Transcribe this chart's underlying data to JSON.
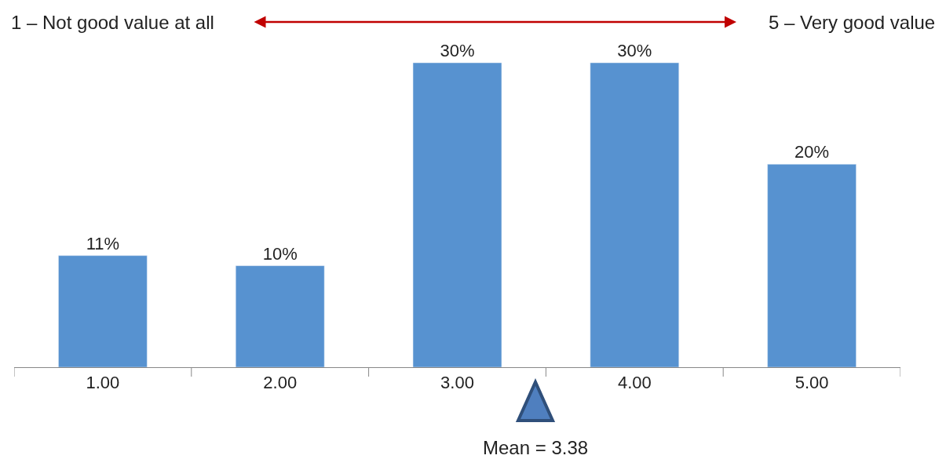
{
  "chart_data": {
    "type": "bar",
    "categories": [
      "1.00",
      "2.00",
      "3.00",
      "4.00",
      "5.00"
    ],
    "values": [
      11,
      10,
      30,
      30,
      20
    ],
    "value_labels": [
      "11%",
      "10%",
      "30%",
      "30%",
      "20%"
    ],
    "color": "#5792d0",
    "annotations": [
      "1 – Not good value at all",
      "5 – Very good value",
      "Mean = 3.38"
    ],
    "legend": false
  }
}
